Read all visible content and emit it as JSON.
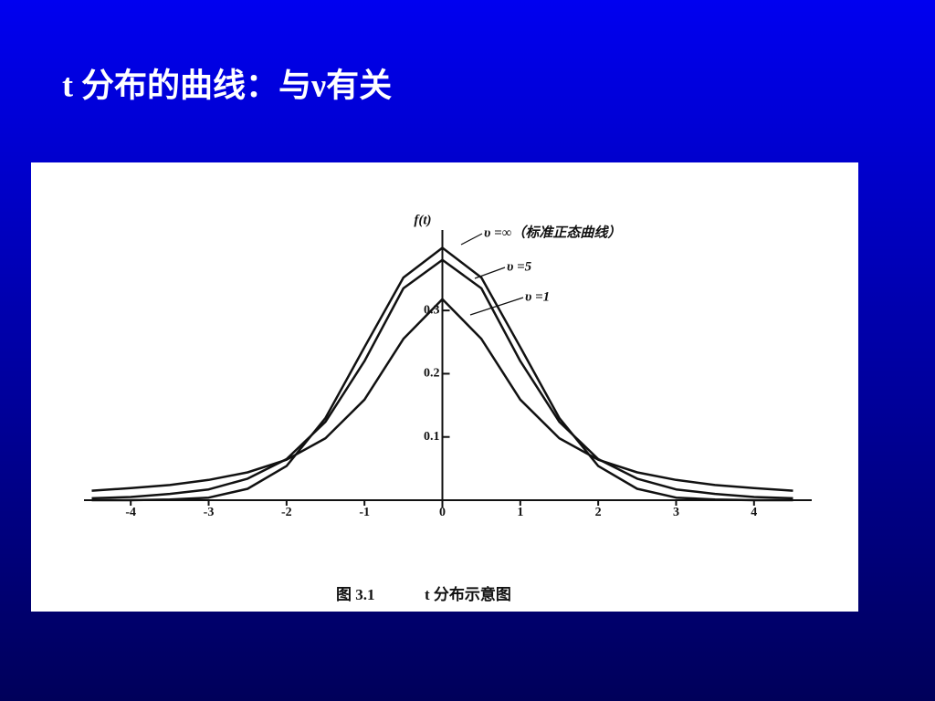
{
  "slide_title": "t 分布的曲线：与ν有关",
  "chart_data": {
    "type": "line",
    "y_label": "f(t)",
    "caption": [
      "图 3.1",
      "t 分布示意图"
    ],
    "x": [
      -4.5,
      -4,
      -3.5,
      -3,
      -2.5,
      -2,
      -1.5,
      -1,
      -0.5,
      0,
      0.5,
      1,
      1.5,
      2,
      2.5,
      3,
      3.5,
      4,
      4.5
    ],
    "series": [
      {
        "name": "υ =∞（标准正态曲线）",
        "color": "#111111",
        "values": [
          0.0,
          0.0,
          0.001,
          0.004,
          0.018,
          0.054,
          0.13,
          0.242,
          0.352,
          0.399,
          0.352,
          0.242,
          0.13,
          0.054,
          0.018,
          0.004,
          0.001,
          0.0,
          0.0
        ]
      },
      {
        "name": "υ =5",
        "color": "#111111",
        "values": [
          0.003,
          0.005,
          0.01,
          0.017,
          0.034,
          0.065,
          0.124,
          0.22,
          0.335,
          0.38,
          0.335,
          0.22,
          0.124,
          0.065,
          0.034,
          0.017,
          0.01,
          0.005,
          0.003
        ]
      },
      {
        "name": "υ =1",
        "color": "#111111",
        "values": [
          0.015,
          0.019,
          0.024,
          0.032,
          0.044,
          0.064,
          0.098,
          0.159,
          0.255,
          0.318,
          0.255,
          0.159,
          0.098,
          0.064,
          0.044,
          0.032,
          0.024,
          0.019,
          0.015
        ]
      }
    ],
    "xlim": [
      -4.6,
      4.6
    ],
    "ylim": [
      0,
      0.42
    ],
    "xticks": [
      -4,
      -3,
      -2,
      -1,
      0,
      1,
      2,
      3,
      4
    ],
    "yticks": [
      0.1,
      0.2,
      0.3
    ]
  }
}
